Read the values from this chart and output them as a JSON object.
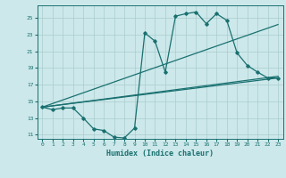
{
  "title": "",
  "xlabel": "Humidex (Indice chaleur)",
  "xlim": [
    -0.5,
    23.5
  ],
  "ylim": [
    10.5,
    26.5
  ],
  "xticks": [
    0,
    1,
    2,
    3,
    4,
    5,
    6,
    7,
    8,
    9,
    10,
    11,
    12,
    13,
    14,
    15,
    16,
    17,
    18,
    19,
    20,
    21,
    22,
    23
  ],
  "yticks": [
    11,
    13,
    15,
    17,
    19,
    21,
    23,
    25
  ],
  "bg_color": "#cce8ea",
  "grid_color": "#aacccc",
  "line_color": "#1a7070",
  "line_width": 0.9,
  "marker": "D",
  "marker_size": 1.8,
  "line1_x": [
    0,
    1,
    2,
    3,
    4,
    5,
    6,
    7,
    8,
    9,
    10,
    11,
    12,
    13,
    14,
    15,
    16,
    17,
    18,
    19,
    20,
    21,
    22,
    23
  ],
  "line1_y": [
    14.3,
    14.0,
    14.2,
    14.2,
    13.0,
    11.7,
    11.5,
    10.7,
    10.6,
    11.8,
    23.2,
    22.2,
    18.5,
    25.2,
    25.5,
    25.7,
    24.3,
    25.5,
    24.7,
    20.8,
    19.3,
    18.5,
    17.8,
    17.8
  ],
  "line2_x": [
    0,
    23
  ],
  "line2_y": [
    14.3,
    18.0
  ],
  "line3_x": [
    0,
    23
  ],
  "line3_y": [
    14.3,
    24.2
  ],
  "line4_x": [
    0,
    23
  ],
  "line4_y": [
    14.3,
    17.8
  ]
}
